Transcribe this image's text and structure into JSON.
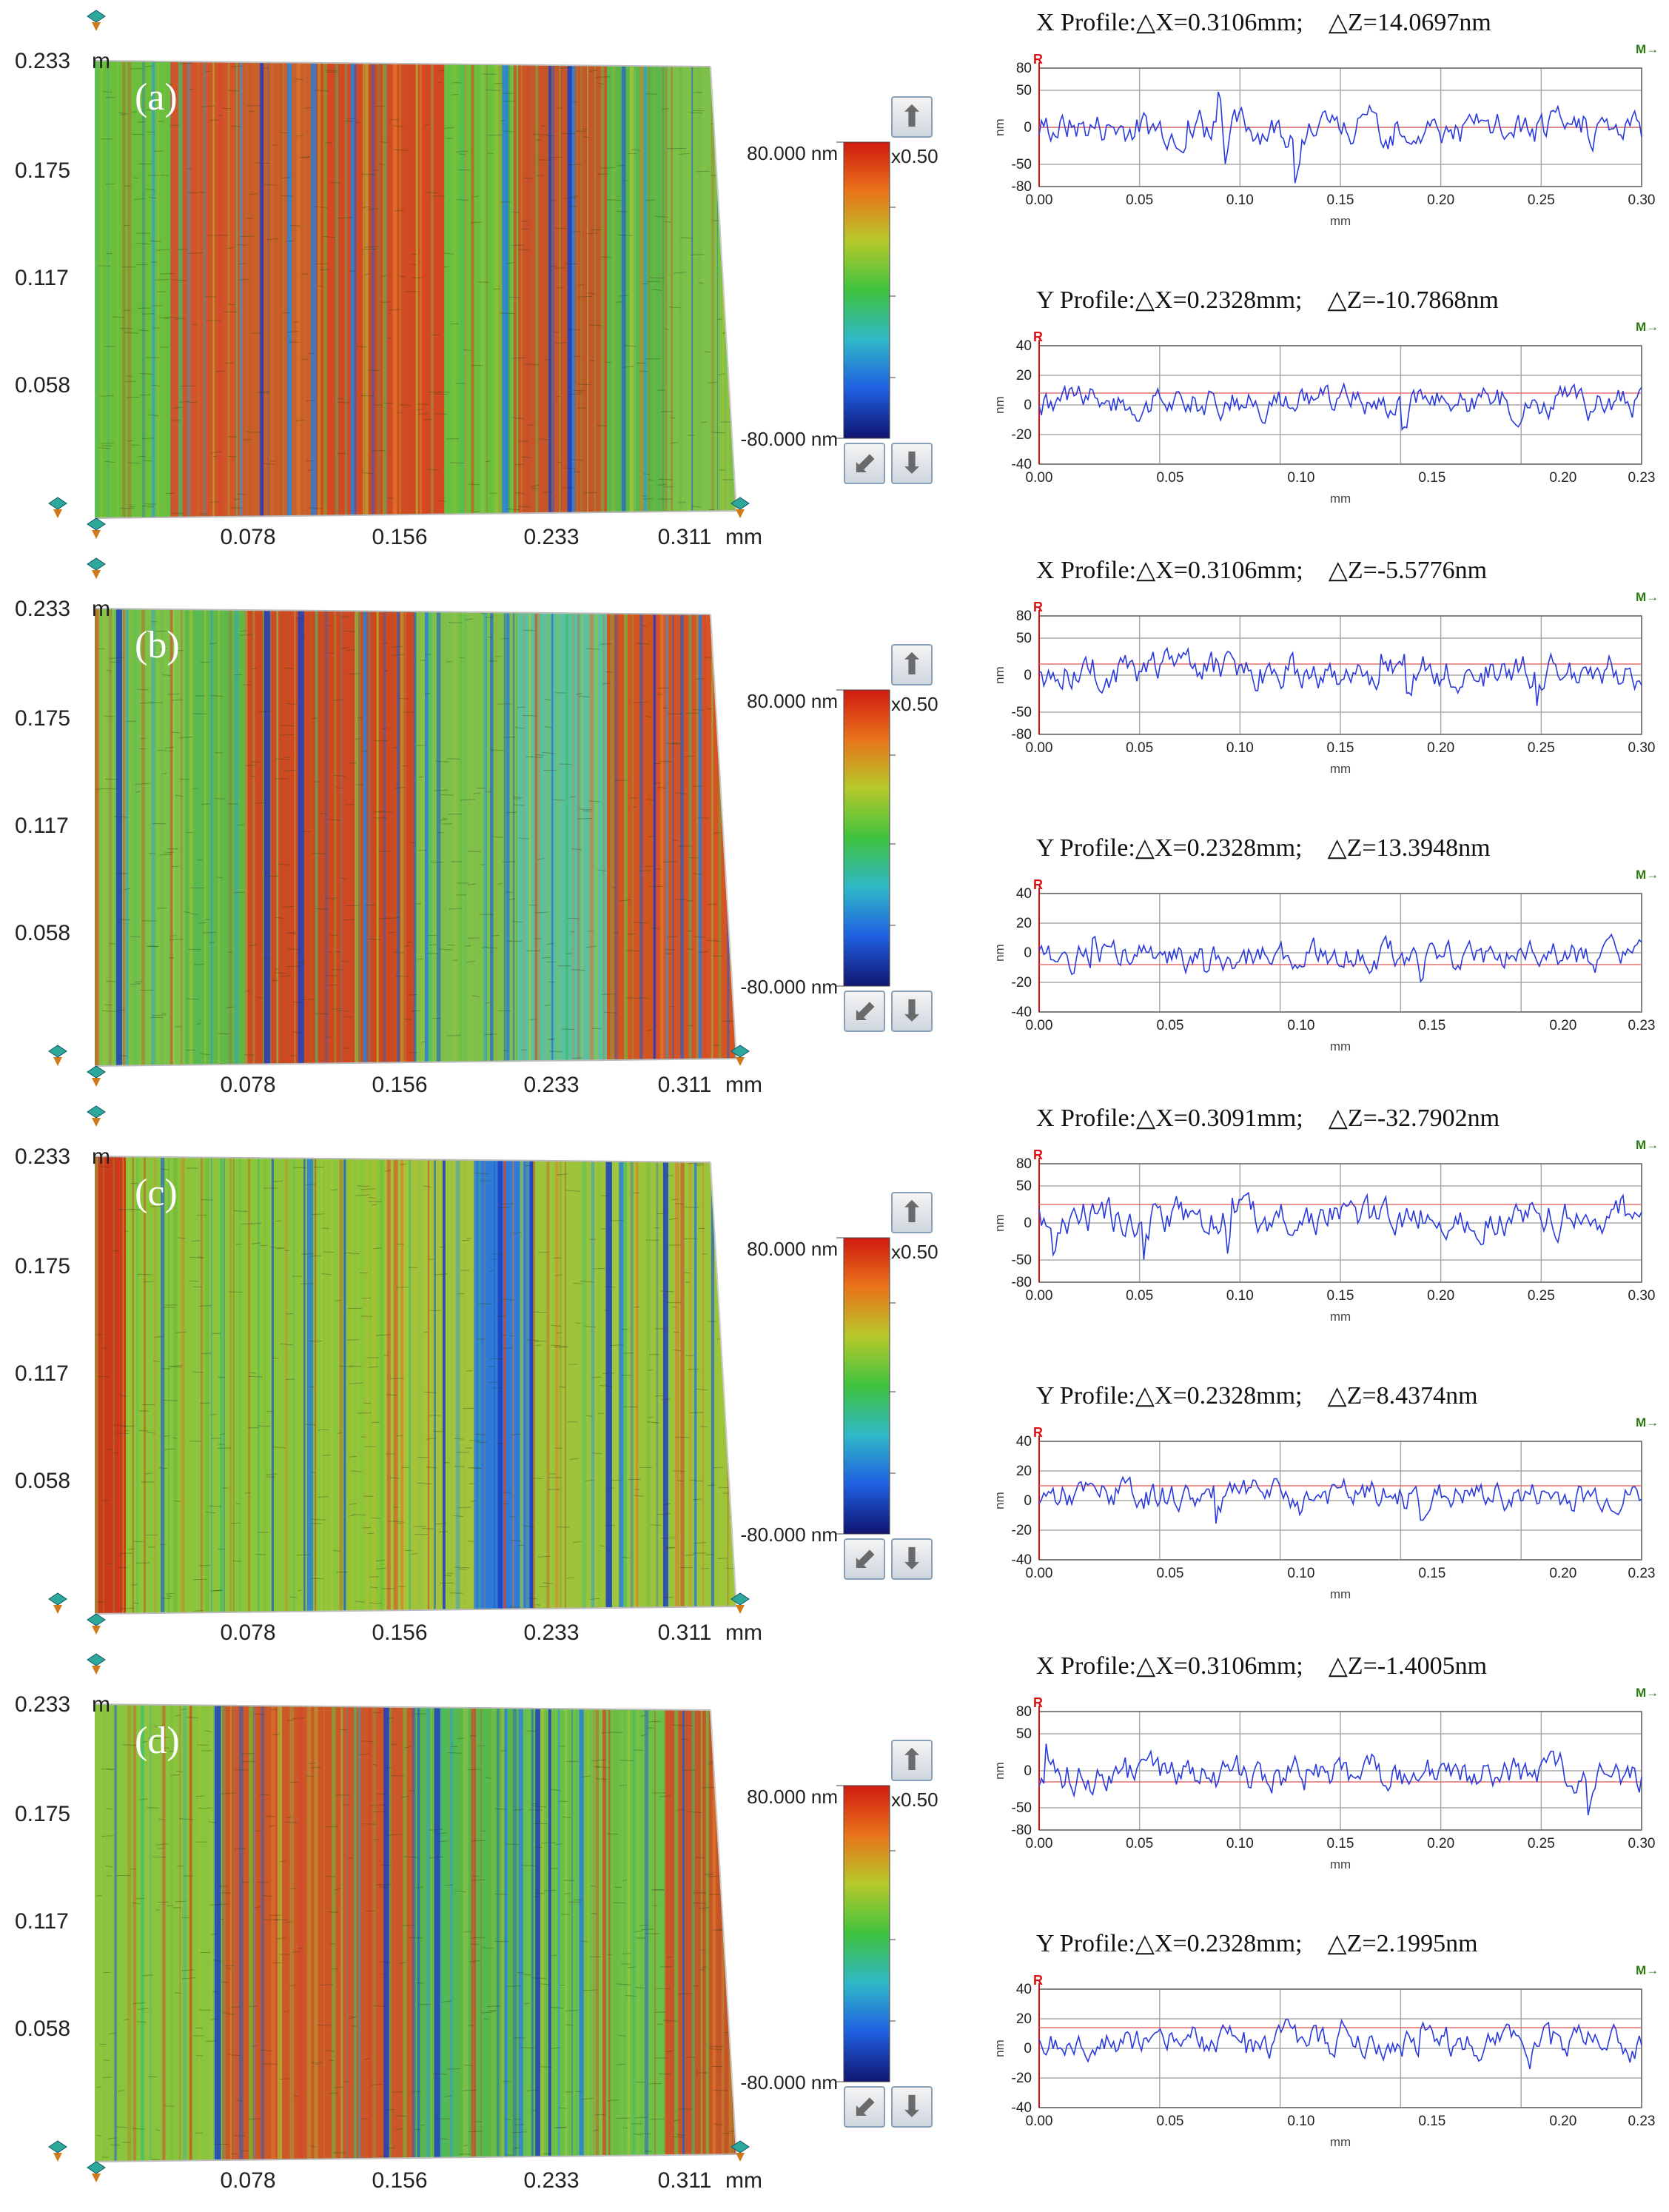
{
  "map": {
    "y_ticks": [
      "0.233",
      "0.175",
      "0.117",
      "0.058"
    ],
    "y_unit_partial": "m",
    "x_ticks": [
      "0.078",
      "0.156",
      "0.233",
      "0.311"
    ],
    "x_unit": "mm"
  },
  "scale_bar": {
    "max_label": "80.000 nm",
    "min_label": "-80.000 nm",
    "multiplier": "x0.50",
    "colors": [
      "#d01a10",
      "#e9741a",
      "#b6c92a",
      "#3fc23f",
      "#2fb8c8",
      "#1f5fe0",
      "#101570"
    ]
  },
  "profile_common": {
    "r_label": "R",
    "m_label": "M→",
    "x_axis_label": "mm",
    "y_axis_label": "nm",
    "x_ticks_x": [
      "0.00",
      "0.05",
      "0.10",
      "0.15",
      "0.20",
      "0.25",
      "0.30"
    ],
    "x_ticks_y": [
      "0.00",
      "0.05",
      "0.10",
      "0.15",
      "0.20",
      "0.23"
    ],
    "y_ticks_x": [
      "80",
      "50",
      "0",
      "-50",
      "-80"
    ],
    "y_ticks_y": [
      "40",
      "20",
      "0",
      "-20",
      "-40"
    ],
    "line_color": "#2a3adb",
    "ref_color": "#e07070"
  },
  "panels": [
    {
      "letter": "(a)",
      "x_profile": {
        "title": "X Profile:△X=0.3106mm;    △Z=14.0697nm",
        "ref": 0
      },
      "y_profile": {
        "title": "Y Profile:△X=0.2328mm;    △Z=-10.7868nm",
        "ref": 8
      }
    },
    {
      "letter": "(b)",
      "x_profile": {
        "title": "X Profile:△X=0.3106mm;    △Z=-5.5776nm",
        "ref": 15
      },
      "y_profile": {
        "title": "Y Profile:△X=0.2328mm;    △Z=13.3948nm",
        "ref": -8
      }
    },
    {
      "letter": "(c)",
      "x_profile": {
        "title": "X Profile:△X=0.3091mm;    △Z=-32.7902nm",
        "ref": 25
      },
      "y_profile": {
        "title": "Y Profile:△X=0.2328mm;    △Z=8.4374nm",
        "ref": 10
      }
    },
    {
      "letter": "(d)",
      "x_profile": {
        "title": "X Profile:△X=0.3106mm;    △Z=-1.4005nm",
        "ref": -15
      },
      "y_profile": {
        "title": "Y Profile:△X=0.2328mm;    △Z=2.1995nm",
        "ref": 14
      }
    }
  ]
}
